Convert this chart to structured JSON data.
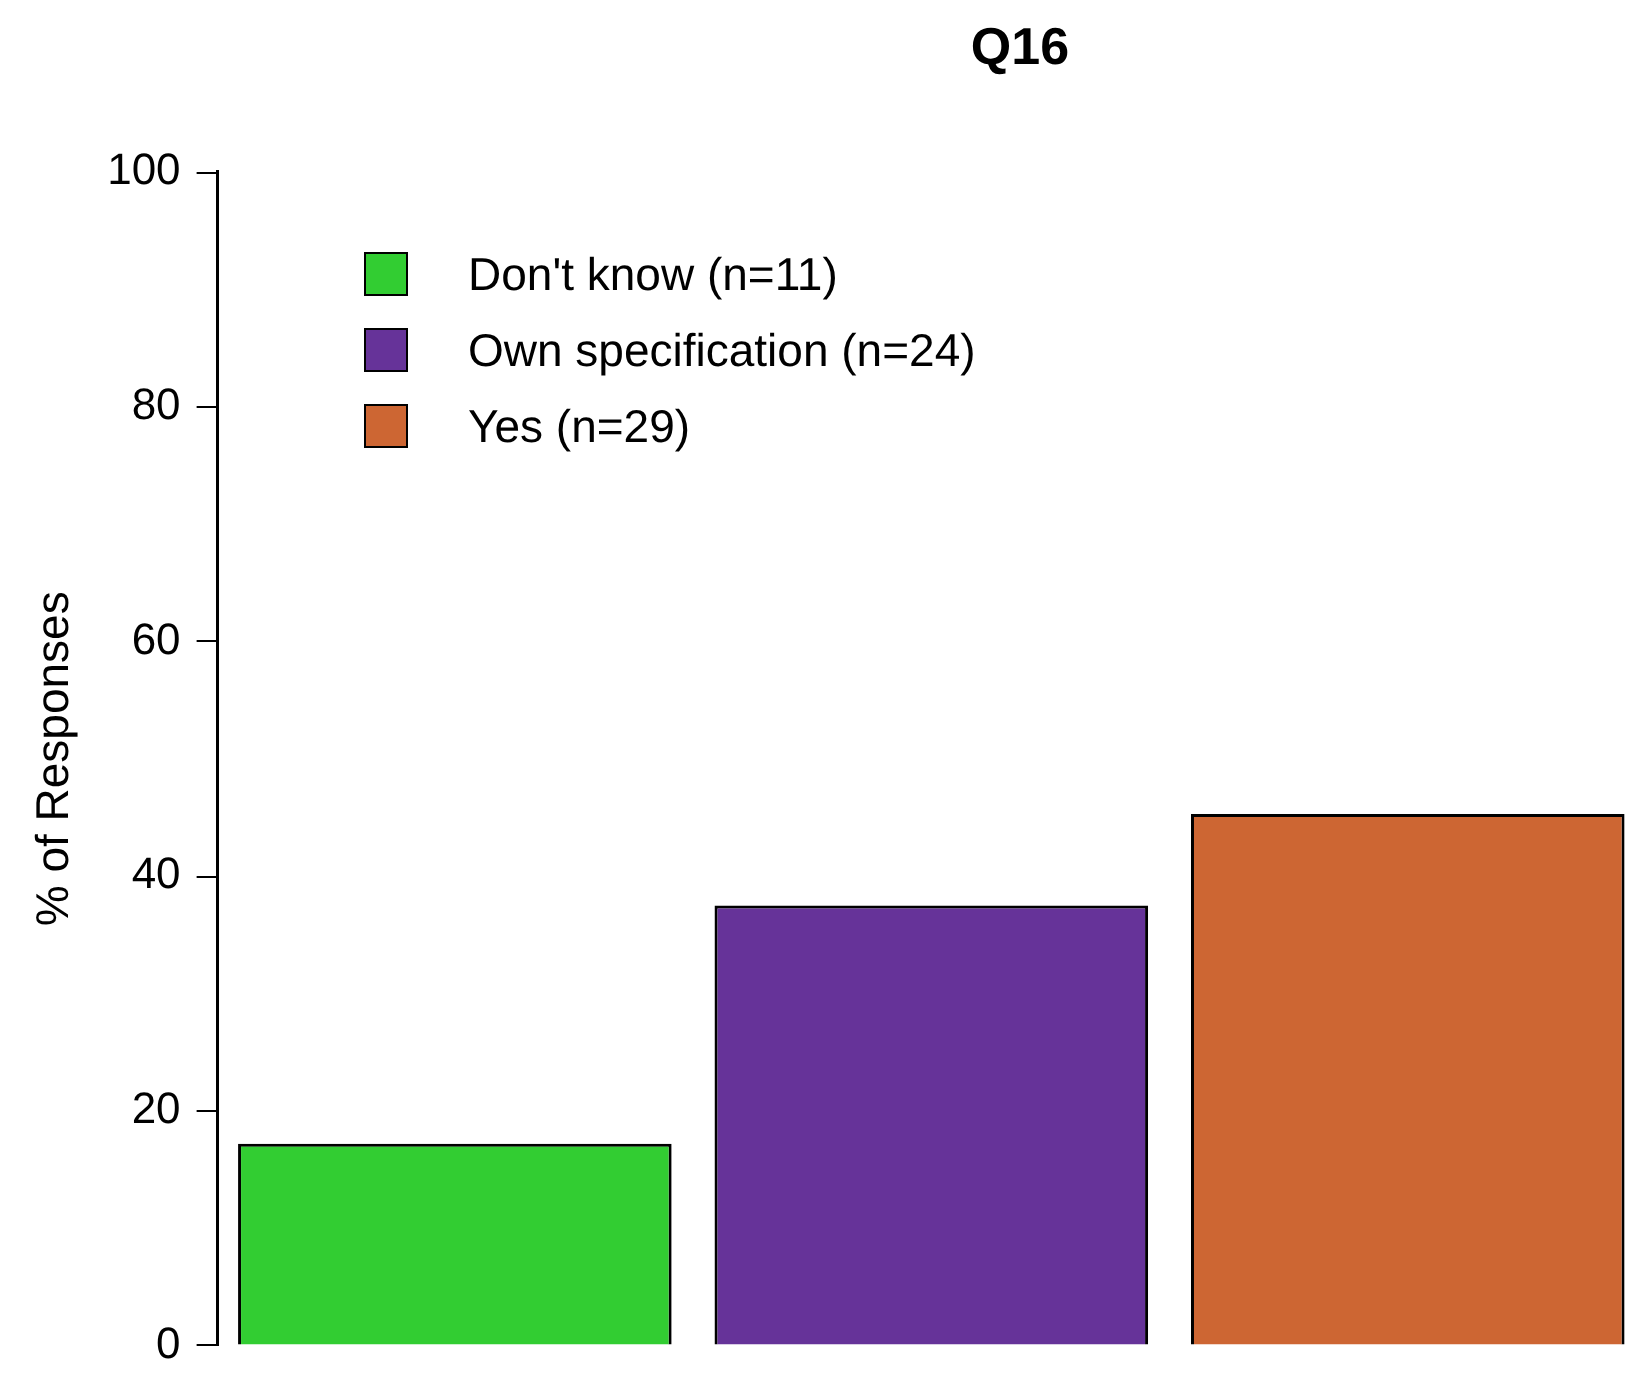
{
  "chart_data": {
    "type": "bar",
    "title": "Q16",
    "ylabel": "% of Responses",
    "categories": [
      null,
      null,
      null
    ],
    "stacked": true,
    "series": [
      {
        "name": "Don't know (n=11)",
        "color": "#32cd32",
        "values": [
          17.2,
          null,
          null
        ]
      },
      {
        "name": "Own specification (n=24)",
        "color": "#663399",
        "values": [
          null,
          37.5,
          null
        ]
      },
      {
        "name": "Yes (n=29)",
        "color": "#cd6633",
        "values": [
          null,
          null,
          45.3
        ]
      }
    ],
    "ylim": [
      0,
      100
    ],
    "yticks": [
      0,
      20,
      40,
      60,
      80,
      100
    ],
    "grid": false,
    "legend": "top left"
  }
}
